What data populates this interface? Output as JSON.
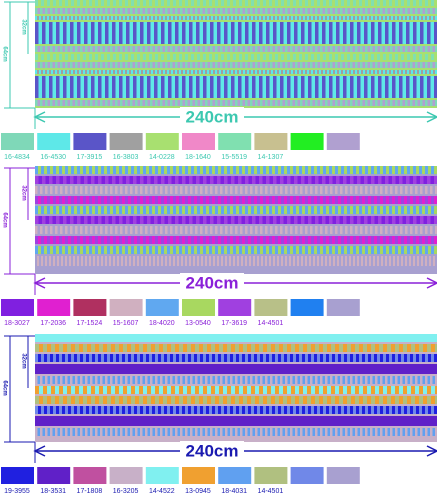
{
  "panels": [
    {
      "width_label": "240cm",
      "height_label": "64cm",
      "half_label": "32cm",
      "ink": "#3cc8b0",
      "swatches": [
        {
          "code": "16-4834",
          "color": "#7fd8b8"
        },
        {
          "code": "16-4530",
          "color": "#5ee8e8"
        },
        {
          "code": "17-3915",
          "color": "#5a55c8"
        },
        {
          "code": "16-3803",
          "color": "#a0a0a0"
        },
        {
          "code": "14-0228",
          "color": "#a8e070"
        },
        {
          "code": "18-1640",
          "color": "#f088c8"
        },
        {
          "code": "15-5519",
          "color": "#80e0b0"
        },
        {
          "code": "14-1307",
          "color": "#c8c090"
        },
        {
          "code": null,
          "color": "#22ee22"
        },
        {
          "code": null,
          "color": "#b0a0d0"
        }
      ]
    },
    {
      "width_label": "240cm",
      "height_label": "64cm",
      "half_label": "32cm",
      "ink": "#8a20d8",
      "swatches": [
        {
          "code": "18-3027",
          "color": "#8020e0"
        },
        {
          "code": "17-2036",
          "color": "#e020d0"
        },
        {
          "code": "17-1524",
          "color": "#b03060"
        },
        {
          "code": "15-1607",
          "color": "#d0b0c0"
        },
        {
          "code": "18-4020",
          "color": "#60a8f0"
        },
        {
          "code": "13-0540",
          "color": "#a8d860"
        },
        {
          "code": "17-3619",
          "color": "#a040e0"
        },
        {
          "code": "14-4501",
          "color": "#b8c088"
        },
        {
          "code": null,
          "color": "#2080f0"
        },
        {
          "code": null,
          "color": "#a8a0d0"
        }
      ]
    },
    {
      "width_label": "240cm",
      "height_label": "64cm",
      "half_label": "32cm",
      "ink": "#1a1ab0",
      "swatches": [
        {
          "code": "19-3955",
          "color": "#2020e0"
        },
        {
          "code": "18-3531",
          "color": "#6020c8"
        },
        {
          "code": "17-1808",
          "color": "#c050a0"
        },
        {
          "code": "16-3205",
          "color": "#c8b0c8"
        },
        {
          "code": "14-4522",
          "color": "#80f0f0"
        },
        {
          "code": "13-0945",
          "color": "#f0a030"
        },
        {
          "code": "18-4031",
          "color": "#60a0f0"
        },
        {
          "code": "14-4501",
          "color": "#b0c080"
        },
        {
          "code": null,
          "color": "#7088e8"
        },
        {
          "code": null,
          "color": "#a8a0d0"
        }
      ]
    }
  ]
}
